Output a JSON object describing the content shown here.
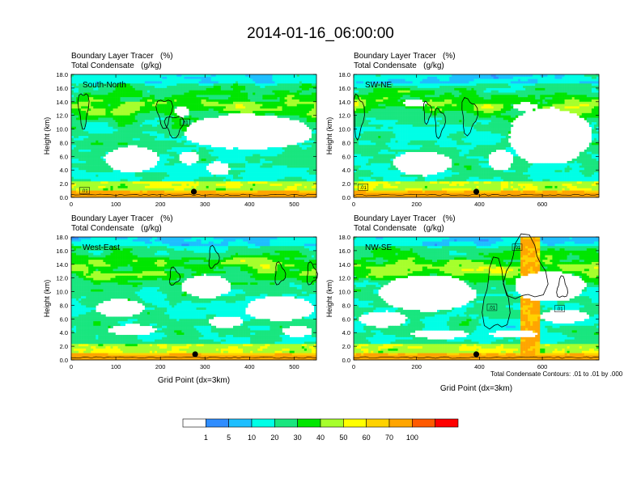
{
  "title": "2014-01-16_06:00:00",
  "panels": [
    {
      "id": "south-north",
      "title_line1": "Boundary Layer Tracer   (%)",
      "title_line2": "Total Condensate   (g/kg)",
      "inset_label": "South-North",
      "ylabel": "Height (km)",
      "xlabel": "",
      "xticks": [
        "0",
        "100",
        "200",
        "300",
        "400",
        "500"
      ],
      "xtick_values": [
        0,
        100,
        200,
        300,
        400,
        500
      ],
      "xmax": 550,
      "yticks": [
        "0.0",
        "2.0",
        "4.0",
        "6.0",
        "8.0",
        "10.0",
        "12.0",
        "14.0",
        "16.0",
        "18.0"
      ],
      "contour_labels": [
        {
          "text": ".01",
          "x": 255,
          "y": 11.0
        },
        {
          "text": ".01",
          "x": 30,
          "y": 1.0
        }
      ],
      "marker_x": 275
    },
    {
      "id": "sw-ne",
      "title_line1": "Boundary Layer Tracer   (%)",
      "title_line2": "Total Condensate   (g/kg)",
      "inset_label": "SW-NE",
      "ylabel": "Height (km)",
      "xlabel": "",
      "xticks": [
        "0",
        "200",
        "400",
        "600"
      ],
      "xtick_values": [
        0,
        200,
        400,
        600
      ],
      "xmax": 780,
      "yticks": [
        "0.0",
        "2.0",
        "4.0",
        "6.0",
        "8.0",
        "10.0",
        "12.0",
        "14.0",
        "16.0",
        "18.0"
      ],
      "contour_labels": [
        {
          "text": ".01",
          "x": 30,
          "y": 1.5
        }
      ],
      "marker_x": 390
    },
    {
      "id": "west-east",
      "title_line1": "Boundary Layer Tracer   (%)",
      "title_line2": "Total Condensate   (g/kg)",
      "inset_label": "West-East",
      "ylabel": "Height (km)",
      "xlabel": "Grid Point (dx=3km)",
      "xticks": [
        "0",
        "100",
        "200",
        "300",
        "400",
        "500"
      ],
      "xtick_values": [
        0,
        100,
        200,
        300,
        400,
        500
      ],
      "xmax": 550,
      "yticks": [
        "0.0",
        "2.0",
        "4.0",
        "6.0",
        "8.0",
        "10.0",
        "12.0",
        "14.0",
        "16.0",
        "18.0"
      ],
      "contour_labels": [],
      "marker_x": 278
    },
    {
      "id": "nw-se",
      "title_line1": "Boundary Layer Tracer   (%)",
      "title_line2": "Total Condensate   (g/kg)",
      "inset_label": "NW-SE",
      "ylabel": "Height (km)",
      "xlabel": "Grid Point (dx=3km)",
      "xticks": [
        "0",
        "200",
        "400",
        "600"
      ],
      "xtick_values": [
        0,
        200,
        400,
        600
      ],
      "xmax": 780,
      "yticks": [
        "0.0",
        "2.0",
        "4.0",
        "6.0",
        "8.0",
        "10.0",
        "12.0",
        "14.0",
        "16.0",
        "18.0"
      ],
      "contour_labels": [
        {
          "text": ".01",
          "x": 520,
          "y": 16.5
        },
        {
          "text": ".01",
          "x": 440,
          "y": 7.7
        },
        {
          "text": ".01",
          "x": 655,
          "y": 7.5
        }
      ],
      "marker_x": 390
    }
  ],
  "footnote": "Total Condensate Contours: .01 to .01 by .000",
  "colorbar": {
    "labels": [
      "1",
      "5",
      "10",
      "20",
      "30",
      "40",
      "50",
      "60",
      "70",
      "100"
    ],
    "colors": [
      "#ffffff",
      "#2f8dff",
      "#1ebfff",
      "#00ffe6",
      "#19e67f",
      "#00e600",
      "#a6ff2c",
      "#ffff00",
      "#ffd200",
      "#ffa500",
      "#ff5a00",
      "#ff0000"
    ]
  },
  "chart_data": {
    "type": "heatmap",
    "title": "2014-01-16_06:00:00",
    "variables": [
      "Boundary Layer Tracer (%)",
      "Total Condensate (g/kg)"
    ],
    "ylim": [
      0,
      18
    ],
    "panels": [
      "South-North",
      "SW-NE",
      "West-East",
      "NW-SE"
    ],
    "legend_levels": [
      1,
      5,
      10,
      20,
      30,
      40,
      50,
      60,
      70,
      100
    ],
    "contour_levels": [
      0.01
    ]
  }
}
